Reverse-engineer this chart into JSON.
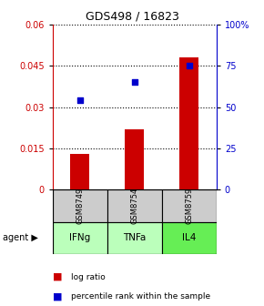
{
  "title": "GDS498 / 16823",
  "samples": [
    "GSM8749",
    "GSM8754",
    "GSM8759"
  ],
  "agents": [
    "IFNg",
    "TNFa",
    "IL4"
  ],
  "log_ratio": [
    0.013,
    0.022,
    0.048
  ],
  "percentile_rank": [
    54,
    65,
    75
  ],
  "bar_color": "#cc0000",
  "dot_color": "#0000cc",
  "ylim_left": [
    0,
    0.06
  ],
  "yticks_left": [
    0,
    0.015,
    0.03,
    0.045,
    0.06
  ],
  "ytick_labels_left": [
    "0",
    "0.015",
    "0.03",
    "0.045",
    "0.06"
  ],
  "ylim_right": [
    0,
    100
  ],
  "yticks_right": [
    0,
    25,
    50,
    75,
    100
  ],
  "ytick_labels_right": [
    "0",
    "25",
    "50",
    "75",
    "100%"
  ],
  "agent_colors": [
    "#bbffbb",
    "#bbffbb",
    "#66ee55"
  ],
  "gsm_box_color": "#cccccc",
  "bar_width": 0.35
}
